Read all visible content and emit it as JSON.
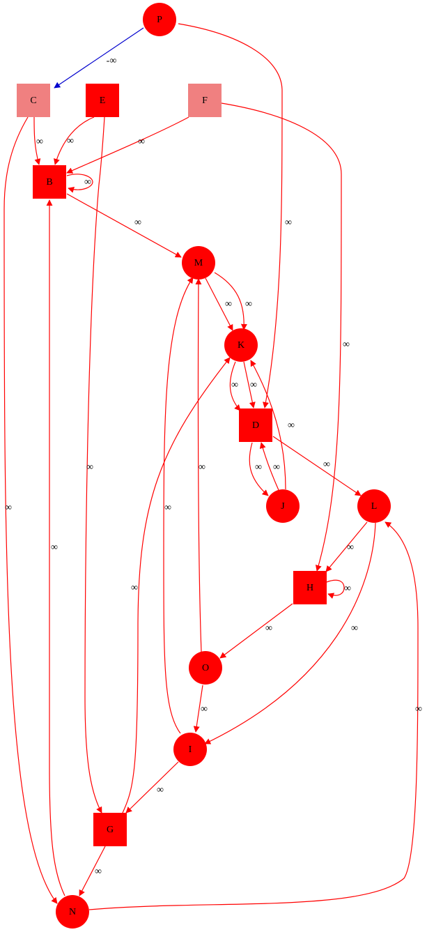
{
  "colors": {
    "node": "#ff0000",
    "node_light": "#f08080",
    "edge": "#ff0000",
    "edge_negative": "#0000cd",
    "text": "#000000"
  },
  "nodes": [
    {
      "id": "P",
      "label": "P",
      "shape": "circle",
      "fill": "#ff0000"
    },
    {
      "id": "C",
      "label": "C",
      "shape": "square",
      "fill": "#f08080"
    },
    {
      "id": "E",
      "label": "E",
      "shape": "square",
      "fill": "#ff0000"
    },
    {
      "id": "F",
      "label": "F",
      "shape": "square",
      "fill": "#f08080"
    },
    {
      "id": "B",
      "label": "B",
      "shape": "square",
      "fill": "#ff0000"
    },
    {
      "id": "M",
      "label": "M",
      "shape": "circle",
      "fill": "#ff0000"
    },
    {
      "id": "K",
      "label": "K",
      "shape": "circle",
      "fill": "#ff0000"
    },
    {
      "id": "D",
      "label": "D",
      "shape": "square",
      "fill": "#ff0000"
    },
    {
      "id": "J",
      "label": "J",
      "shape": "circle",
      "fill": "#ff0000"
    },
    {
      "id": "L",
      "label": "L",
      "shape": "circle",
      "fill": "#ff0000"
    },
    {
      "id": "H",
      "label": "H",
      "shape": "square",
      "fill": "#ff0000"
    },
    {
      "id": "O",
      "label": "O",
      "shape": "circle",
      "fill": "#ff0000"
    },
    {
      "id": "I",
      "label": "I",
      "shape": "circle",
      "fill": "#ff0000"
    },
    {
      "id": "G",
      "label": "G",
      "shape": "square",
      "fill": "#ff0000"
    },
    {
      "id": "N",
      "label": "N",
      "shape": "circle",
      "fill": "#ff0000"
    }
  ],
  "edges": [
    {
      "id": "P-C",
      "from": "P",
      "to": "C",
      "label": "-∞",
      "color": "#0000cd"
    },
    {
      "id": "P-D",
      "from": "P",
      "to": "D",
      "label": "∞",
      "color": "#ff0000"
    },
    {
      "id": "C-B",
      "from": "C",
      "to": "B",
      "label": "∞",
      "color": "#ff0000"
    },
    {
      "id": "C-N",
      "from": "C",
      "to": "N",
      "label": "∞",
      "color": "#ff0000"
    },
    {
      "id": "E-B",
      "from": "E",
      "to": "B",
      "label": "∞",
      "color": "#ff0000"
    },
    {
      "id": "E-G",
      "from": "E",
      "to": "G",
      "label": "∞",
      "color": "#ff0000"
    },
    {
      "id": "F-B",
      "from": "F",
      "to": "B",
      "label": "∞",
      "color": "#ff0000"
    },
    {
      "id": "F-H",
      "from": "F",
      "to": "H",
      "label": "∞",
      "color": "#ff0000"
    },
    {
      "id": "B-B",
      "from": "B",
      "to": "B",
      "label": "∞",
      "color": "#ff0000"
    },
    {
      "id": "B-M",
      "from": "B",
      "to": "M",
      "label": "∞",
      "color": "#ff0000"
    },
    {
      "id": "M-K-1",
      "from": "M",
      "to": "K",
      "label": "∞",
      "color": "#ff0000"
    },
    {
      "id": "M-K-2",
      "from": "M",
      "to": "K",
      "label": "∞",
      "color": "#ff0000"
    },
    {
      "id": "K-D-1",
      "from": "K",
      "to": "D",
      "label": "∞",
      "color": "#ff0000"
    },
    {
      "id": "K-D-2",
      "from": "K",
      "to": "D",
      "label": "∞",
      "color": "#ff0000"
    },
    {
      "id": "J-K",
      "from": "J",
      "to": "K",
      "label": "∞",
      "color": "#ff0000"
    },
    {
      "id": "D-J",
      "from": "D",
      "to": "J",
      "label": "∞",
      "color": "#ff0000"
    },
    {
      "id": "J-D",
      "from": "J",
      "to": "D",
      "label": "∞",
      "color": "#ff0000"
    },
    {
      "id": "D-L",
      "from": "D",
      "to": "L",
      "label": "∞",
      "color": "#ff0000"
    },
    {
      "id": "L-H",
      "from": "L",
      "to": "H",
      "label": "∞",
      "color": "#ff0000"
    },
    {
      "id": "L-I",
      "from": "L",
      "to": "I",
      "label": "∞",
      "color": "#ff0000"
    },
    {
      "id": "H-H",
      "from": "H",
      "to": "H",
      "label": "∞",
      "color": "#ff0000"
    },
    {
      "id": "H-O",
      "from": "H",
      "to": "O",
      "label": "∞",
      "color": "#ff0000"
    },
    {
      "id": "O-M",
      "from": "O",
      "to": "M",
      "label": "∞",
      "color": "#ff0000"
    },
    {
      "id": "O-I",
      "from": "O",
      "to": "I",
      "label": "∞",
      "color": "#ff0000"
    },
    {
      "id": "I-M",
      "from": "I",
      "to": "M",
      "label": "∞",
      "color": "#ff0000"
    },
    {
      "id": "I-G",
      "from": "I",
      "to": "G",
      "label": "∞",
      "color": "#ff0000"
    },
    {
      "id": "G-K",
      "from": "G",
      "to": "K",
      "label": "∞",
      "color": "#ff0000"
    },
    {
      "id": "G-N",
      "from": "G",
      "to": "N",
      "label": "∞",
      "color": "#ff0000"
    },
    {
      "id": "N-B",
      "from": "N",
      "to": "B",
      "label": "∞",
      "color": "#ff0000"
    },
    {
      "id": "N-L",
      "from": "N",
      "to": "L",
      "label": "∞",
      "color": "#ff0000"
    }
  ]
}
